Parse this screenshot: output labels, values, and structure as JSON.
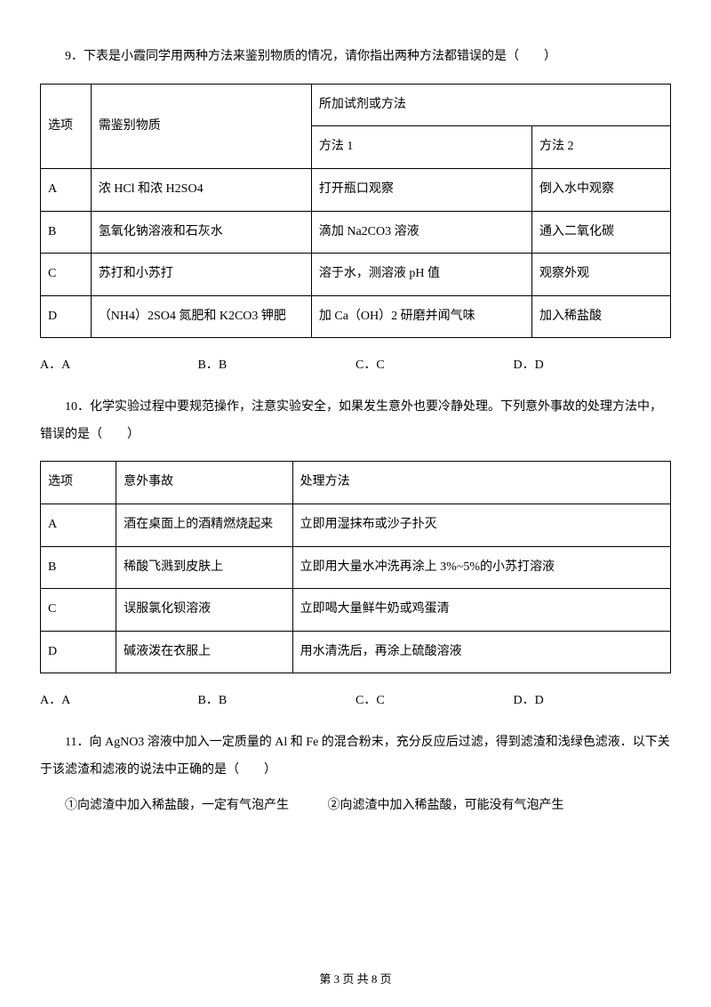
{
  "q9": {
    "text": "9．下表是小霞同学用两种方法来鉴别物质的情况，请你指出两种方法都错误的是（　　）",
    "table": {
      "header": {
        "opt": "选项",
        "substance": "需鉴别物质",
        "reagent": "所加试剂或方法",
        "method1": "方法 1",
        "method2": "方法 2"
      },
      "rows": [
        {
          "opt": "A",
          "substance": "浓 HCl 和浓 H2SO4",
          "m1": "打开瓶口观察",
          "m2": "倒入水中观察"
        },
        {
          "opt": "B",
          "substance": "氢氧化钠溶液和石灰水",
          "m1": "滴加 Na2CO3 溶液",
          "m2": "通入二氧化碳"
        },
        {
          "opt": "C",
          "substance": "苏打和小苏打",
          "m1": "溶于水，测溶液 pH 值",
          "m2": "观察外观"
        },
        {
          "opt": "D",
          "substance": "（NH4）2SO4 氮肥和 K2CO3 钾肥",
          "m1": "加 Ca（OH）2 研磨并闻气味",
          "m2": "加入稀盐酸"
        }
      ]
    },
    "options": {
      "a": "A．A",
      "b": "B．B",
      "c": "C．C",
      "d": "D．D"
    }
  },
  "q10": {
    "text": "10．化学实验过程中要规范操作，注意实验安全，如果发生意外也要冷静处理。下列意外事故的处理方法中，错误的是（　　）",
    "table": {
      "header": {
        "opt": "选项",
        "accident": "意外事故",
        "method": "处理方法"
      },
      "rows": [
        {
          "opt": "A",
          "accident": "酒在桌面上的酒精燃烧起来",
          "method": "立即用湿抹布或沙子扑灭"
        },
        {
          "opt": "B",
          "accident": "稀酸飞溅到皮肤上",
          "method": "立即用大量水冲洗再涂上 3%~5%的小苏打溶液"
        },
        {
          "opt": "C",
          "accident": "误服氯化钡溶液",
          "method": "立即喝大量鲜牛奶或鸡蛋清"
        },
        {
          "opt": "D",
          "accident": "碱液泼在衣服上",
          "method": "用水清洗后，再涂上硫酸溶液"
        }
      ]
    },
    "options": {
      "a": "A．A",
      "b": "B．B",
      "c": "C．C",
      "d": "D．D"
    }
  },
  "q11": {
    "text": "11．向 AgNO3 溶液中加入一定质量的 Al 和 Fe 的混合粉末，充分反应后过滤，得到滤渣和浅绿色滤液．以下关于该滤渣和滤液的说法中正确的是（　　）",
    "sub1": "①向滤渣中加入稀盐酸，一定有气泡产生",
    "sub2": "②向滤渣中加入稀盐酸，可能没有气泡产生"
  },
  "footer": "第 3 页 共 8 页"
}
